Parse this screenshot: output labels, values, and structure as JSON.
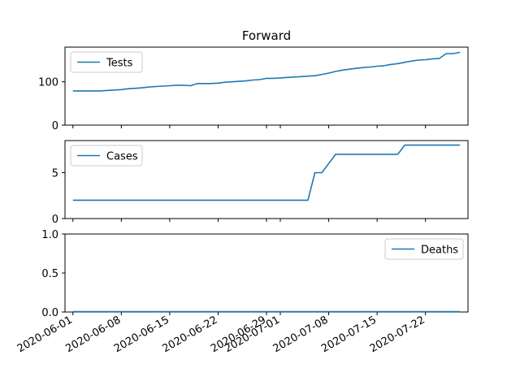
{
  "chart_data": {
    "type": "line",
    "title": "Forward",
    "line_color": "#1f77b4",
    "x_ticks": [
      "2020-06-01",
      "2020-06-08",
      "2020-06-15",
      "2020-06-22",
      "2020-06-29",
      "2020-07-01",
      "2020-07-08",
      "2020-07-15",
      "2020-07-22"
    ],
    "dates": [
      "2020-06-01",
      "2020-06-02",
      "2020-06-03",
      "2020-06-04",
      "2020-06-05",
      "2020-06-06",
      "2020-06-07",
      "2020-06-08",
      "2020-06-09",
      "2020-06-10",
      "2020-06-11",
      "2020-06-12",
      "2020-06-13",
      "2020-06-14",
      "2020-06-15",
      "2020-06-16",
      "2020-06-17",
      "2020-06-18",
      "2020-06-19",
      "2020-06-20",
      "2020-06-21",
      "2020-06-22",
      "2020-06-23",
      "2020-06-24",
      "2020-06-25",
      "2020-06-26",
      "2020-06-27",
      "2020-06-28",
      "2020-06-29",
      "2020-06-30",
      "2020-07-01",
      "2020-07-02",
      "2020-07-03",
      "2020-07-04",
      "2020-07-05",
      "2020-07-06",
      "2020-07-07",
      "2020-07-08",
      "2020-07-09",
      "2020-07-10",
      "2020-07-11",
      "2020-07-12",
      "2020-07-13",
      "2020-07-14",
      "2020-07-15",
      "2020-07-16",
      "2020-07-17",
      "2020-07-18",
      "2020-07-19",
      "2020-07-20",
      "2020-07-21",
      "2020-07-22",
      "2020-07-23",
      "2020-07-24",
      "2020-07-25",
      "2020-07-26",
      "2020-07-27"
    ],
    "panels": [
      {
        "series_name": "Tests",
        "ylim": [
          0,
          180
        ],
        "yticks": [
          "0",
          "100"
        ],
        "ytick_values": [
          0,
          100
        ],
        "legend_loc": "upper left",
        "values": [
          79,
          79,
          79,
          79,
          79,
          80,
          81,
          82,
          84,
          85,
          86,
          88,
          89,
          90,
          91,
          92,
          92,
          91,
          96,
          96,
          96,
          97,
          99,
          100,
          101,
          102,
          104,
          105,
          108,
          108,
          109,
          110,
          111,
          112,
          113,
          114,
          117,
          120,
          124,
          127,
          129,
          131,
          133,
          134,
          136,
          137,
          140,
          142,
          145,
          148,
          150,
          151,
          153,
          154,
          165,
          165,
          168
        ]
      },
      {
        "series_name": "Cases",
        "ylim": [
          0,
          8.5
        ],
        "yticks": [
          "0",
          "5"
        ],
        "ytick_values": [
          0,
          5
        ],
        "legend_loc": "upper left",
        "values": [
          2,
          2,
          2,
          2,
          2,
          2,
          2,
          2,
          2,
          2,
          2,
          2,
          2,
          2,
          2,
          2,
          2,
          2,
          2,
          2,
          2,
          2,
          2,
          2,
          2,
          2,
          2,
          2,
          2,
          2,
          2,
          2,
          2,
          2,
          2,
          5,
          5,
          6,
          7,
          7,
          7,
          7,
          7,
          7,
          7,
          7,
          7,
          7,
          8,
          8,
          8,
          8,
          8,
          8,
          8,
          8,
          8
        ]
      },
      {
        "series_name": "Deaths",
        "ylim": [
          0,
          1.0
        ],
        "yticks": [
          "0.0",
          "0.5",
          "1.0"
        ],
        "ytick_values": [
          0,
          0.5,
          1.0
        ],
        "legend_loc": "upper right",
        "values": [
          0,
          0,
          0,
          0,
          0,
          0,
          0,
          0,
          0,
          0,
          0,
          0,
          0,
          0,
          0,
          0,
          0,
          0,
          0,
          0,
          0,
          0,
          0,
          0,
          0,
          0,
          0,
          0,
          0,
          0,
          0,
          0,
          0,
          0,
          0,
          0,
          0,
          0,
          0,
          0,
          0,
          0,
          0,
          0,
          0,
          0,
          0,
          0,
          0,
          0,
          0,
          0,
          0,
          0,
          0,
          0,
          0
        ]
      }
    ]
  }
}
